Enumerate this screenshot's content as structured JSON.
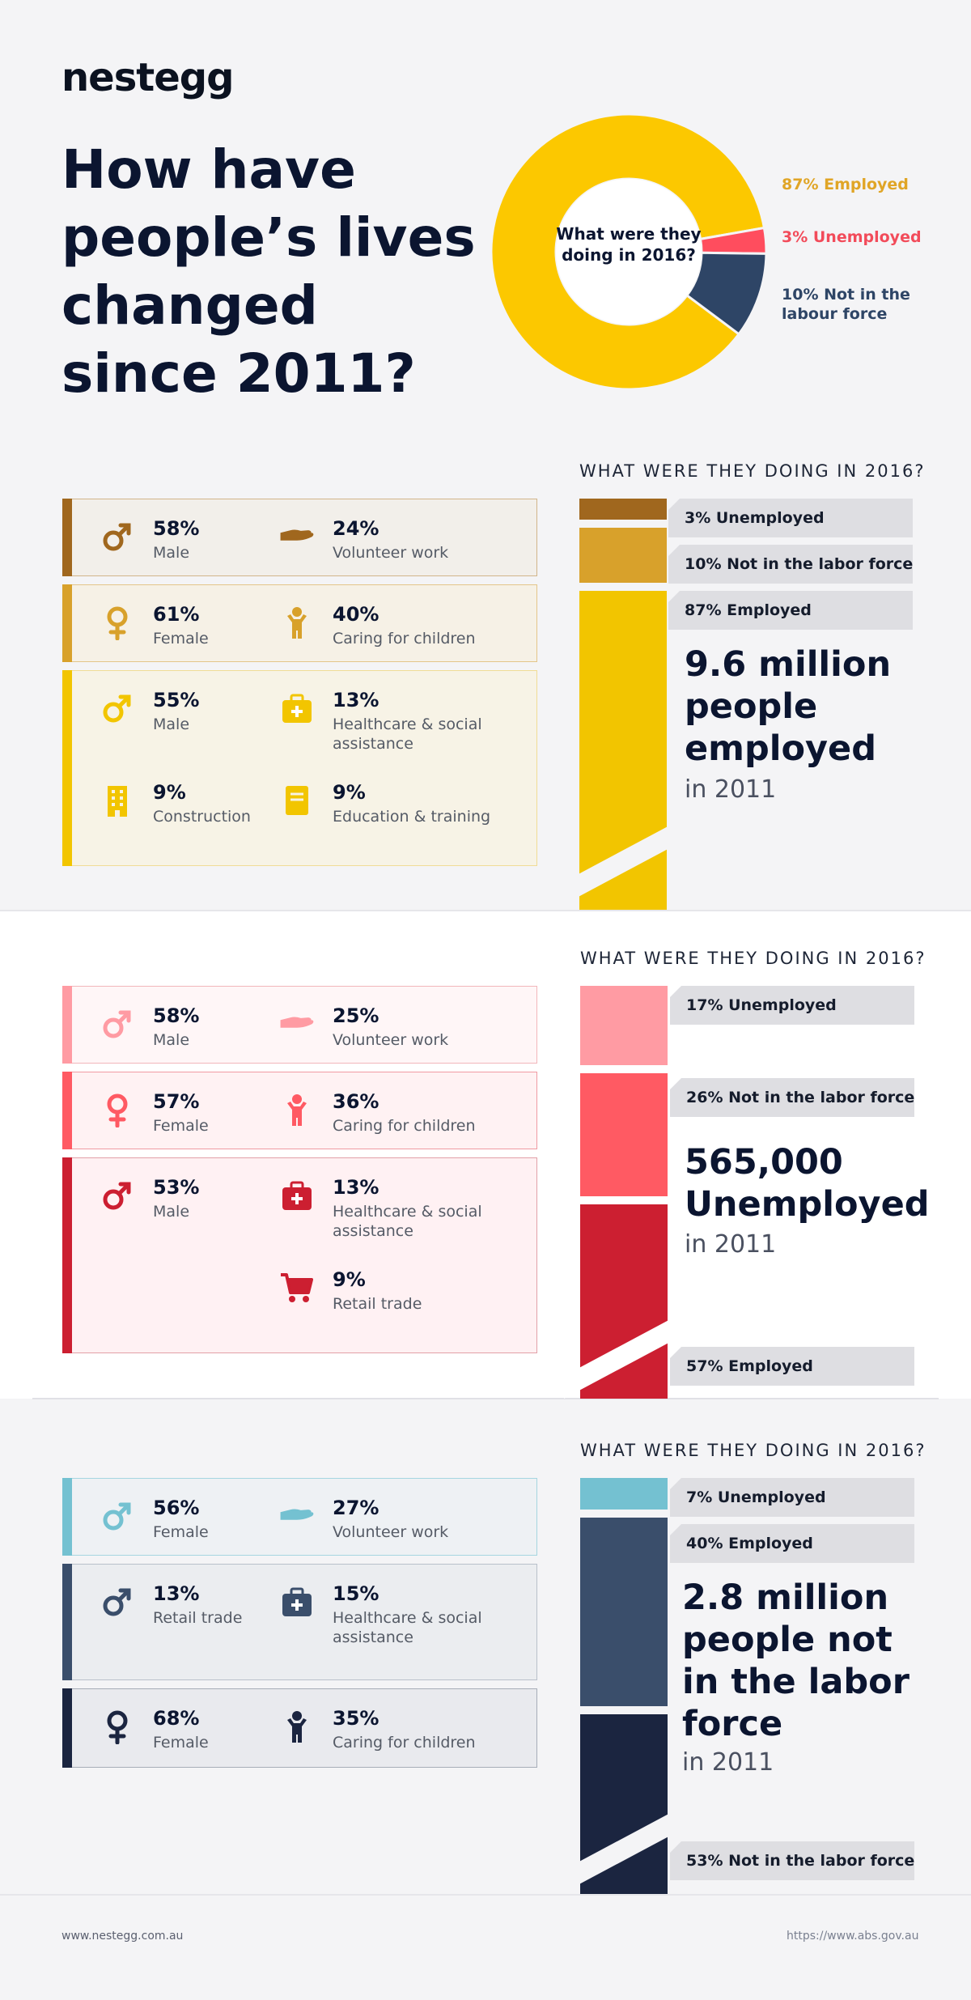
{
  "brand": "nestegg",
  "headline": "How have people’s lives changed since 2011?",
  "chart_data": {
    "type": "pie",
    "title": "What were they doing in 2016?",
    "categories": [
      "Employed",
      "Unemployed",
      "Not in the labour force"
    ],
    "values": [
      87,
      3,
      10
    ],
    "colors": [
      "#fcc800",
      "#ff4d5e",
      "#2e4566"
    ]
  },
  "legend": {
    "employed": "87% Employed",
    "unemployed": "3% Unemployed",
    "not_in_lf": "10% Not in the labour force"
  },
  "sections": [
    {
      "title": "WHAT WERE THEY DOING IN 2016?",
      "big": "9.6 million people employed",
      "year": "in 2011",
      "tags": [
        "3% Unemployed",
        "10% Not in the labor force",
        "87% Employed"
      ],
      "bar_colors": [
        "#a0671e",
        "#d8a12b",
        "#f2c500"
      ],
      "bar_values": [
        3,
        10,
        87
      ],
      "cards": [
        {
          "items": [
            {
              "pct": "58%",
              "label": "Male",
              "icon": "male-icon"
            },
            {
              "pct": "24%",
              "label": "Volunteer work",
              "icon": "helping-hand-icon"
            }
          ]
        },
        {
          "items": [
            {
              "pct": "61%",
              "label": "Female",
              "icon": "female-icon"
            },
            {
              "pct": "40%",
              "label": "Caring for children",
              "icon": "child-icon"
            }
          ]
        },
        {
          "items": [
            {
              "pct": "55%",
              "label": "Male",
              "icon": "male-icon"
            },
            {
              "pct": "13%",
              "label": "Healthcare & social assistance",
              "icon": "medical-kit-icon"
            },
            {
              "pct": "9%",
              "label": "Construction",
              "icon": "building-icon"
            },
            {
              "pct": "9%",
              "label": "Education & training",
              "icon": "book-icon"
            }
          ]
        }
      ]
    },
    {
      "title": "WHAT WERE THEY DOING IN 2016?",
      "big": "565,000 Unemployed",
      "year": "in 2011",
      "tags": [
        "17% Unemployed",
        "26% Not in the labor force",
        "57% Employed"
      ],
      "bar_colors": [
        "#ff9ba3",
        "#ff5a63",
        "#cc1f31"
      ],
      "bar_values": [
        17,
        26,
        57
      ],
      "cards": [
        {
          "items": [
            {
              "pct": "58%",
              "label": "Male",
              "icon": "male-icon"
            },
            {
              "pct": "25%",
              "label": "Volunteer work",
              "icon": "helping-hand-icon"
            }
          ]
        },
        {
          "items": [
            {
              "pct": "57%",
              "label": "Female",
              "icon": "female-icon"
            },
            {
              "pct": "36%",
              "label": "Caring for children",
              "icon": "child-icon"
            }
          ]
        },
        {
          "items": [
            {
              "pct": "53%",
              "label": "Male",
              "icon": "male-icon"
            },
            {
              "pct": "13%",
              "label": "Healthcare & social assistance",
              "icon": "medical-kit-icon"
            },
            {
              "pct": "9%",
              "label": "Retail trade",
              "icon": "cart-icon"
            }
          ]
        }
      ]
    },
    {
      "title": "WHAT WERE THEY DOING IN 2016?",
      "big": "2.8 million people not in the labor force",
      "year": "in 2011",
      "tags": [
        "7% Unemployed",
        "40% Employed",
        "53% Not in the labor force"
      ],
      "bar_colors": [
        "#74c1d1",
        "#3a4e6b",
        "#1b2540"
      ],
      "bar_values": [
        7,
        40,
        53
      ],
      "cards": [
        {
          "items": [
            {
              "pct": "56%",
              "label": "Female",
              "icon": "male-icon"
            },
            {
              "pct": "27%",
              "label": "Volunteer work",
              "icon": "helping-hand-icon"
            }
          ]
        },
        {
          "items": [
            {
              "pct": "13%",
              "label": "Retail trade",
              "icon": "male-icon"
            },
            {
              "pct": "15%",
              "label": "Healthcare & social assistance",
              "icon": "medical-kit-icon"
            }
          ]
        },
        {
          "items": [
            {
              "pct": "68%",
              "label": "Female",
              "icon": "female-icon"
            },
            {
              "pct": "35%",
              "label": "Caring for children",
              "icon": "child-icon"
            }
          ]
        }
      ]
    }
  ],
  "footer": {
    "left": "www.nestegg.com.au",
    "right": "https://www.abs.gov.au"
  }
}
